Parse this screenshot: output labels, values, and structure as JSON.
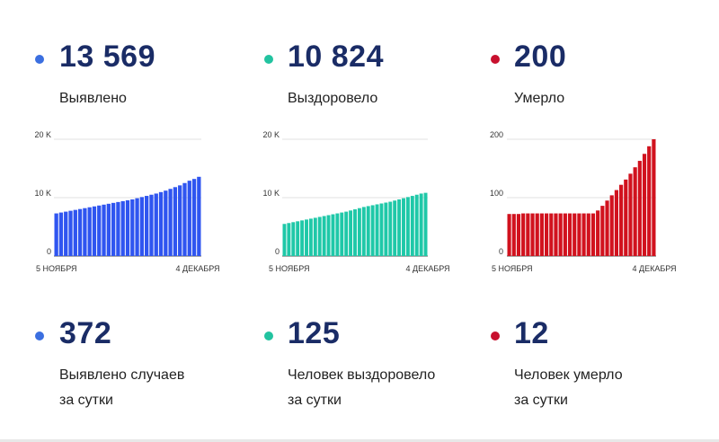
{
  "panels": [
    {
      "dot_color": "#3b6fe0",
      "total": "13 569",
      "total_label": "Выявлено",
      "daily": "372",
      "daily_label_1": "Выявлено случаев",
      "daily_label_2": "за сутки"
    },
    {
      "dot_color": "#22c3a0",
      "total": "10 824",
      "total_label": "Выздоровело",
      "daily": "125",
      "daily_label_1": "Человек выздоровело",
      "daily_label_2": "за сутки"
    },
    {
      "dot_color": "#c8102e",
      "total": "200",
      "total_label": "Умерло",
      "daily": "12",
      "daily_label_1": "Человек умерло",
      "daily_label_2": "за сутки"
    }
  ],
  "chart_data": [
    {
      "type": "bar",
      "color": "#2f55f0",
      "x_start_label": "5 НОЯБРЯ",
      "x_end_label": "4 ДЕКАБРЯ",
      "ylim": [
        0,
        20000
      ],
      "yticks": [
        {
          "value": 0,
          "label": "0"
        },
        {
          "value": 10000,
          "label": "10 K"
        },
        {
          "value": 20000,
          "label": "20 K"
        }
      ],
      "values": [
        7300,
        7450,
        7600,
        7750,
        7900,
        8050,
        8200,
        8350,
        8500,
        8650,
        8800,
        8950,
        9100,
        9250,
        9400,
        9550,
        9700,
        9900,
        10100,
        10300,
        10500,
        10700,
        10950,
        11200,
        11500,
        11800,
        12100,
        12500,
        12900,
        13200,
        13569
      ]
    },
    {
      "type": "bar",
      "color": "#1fc8a8",
      "x_start_label": "5 НОЯБРЯ",
      "x_end_label": "4 ДЕКАБРЯ",
      "ylim": [
        0,
        20000
      ],
      "yticks": [
        {
          "value": 0,
          "label": "0"
        },
        {
          "value": 10000,
          "label": "10 K"
        },
        {
          "value": 20000,
          "label": "20 K"
        }
      ],
      "values": [
        5500,
        5650,
        5800,
        5950,
        6100,
        6250,
        6400,
        6550,
        6700,
        6850,
        7000,
        7150,
        7300,
        7450,
        7600,
        7800,
        8000,
        8200,
        8400,
        8550,
        8700,
        8850,
        9000,
        9150,
        9300,
        9500,
        9700,
        9900,
        10100,
        10300,
        10500,
        10700,
        10824
      ]
    },
    {
      "type": "bar",
      "color": "#d1121e",
      "x_start_label": "5 НОЯБРЯ",
      "x_end_label": "4 ДЕКАБРЯ",
      "ylim": [
        0,
        200
      ],
      "yticks": [
        {
          "value": 0,
          "label": "0"
        },
        {
          "value": 100,
          "label": "100"
        },
        {
          "value": 200,
          "label": "200"
        }
      ],
      "values": [
        72,
        72,
        72,
        73,
        73,
        73,
        73,
        73,
        73,
        73,
        73,
        73,
        73,
        73,
        73,
        73,
        73,
        73,
        73,
        78,
        86,
        95,
        104,
        113,
        122,
        131,
        141,
        152,
        163,
        175,
        188,
        200
      ]
    }
  ]
}
